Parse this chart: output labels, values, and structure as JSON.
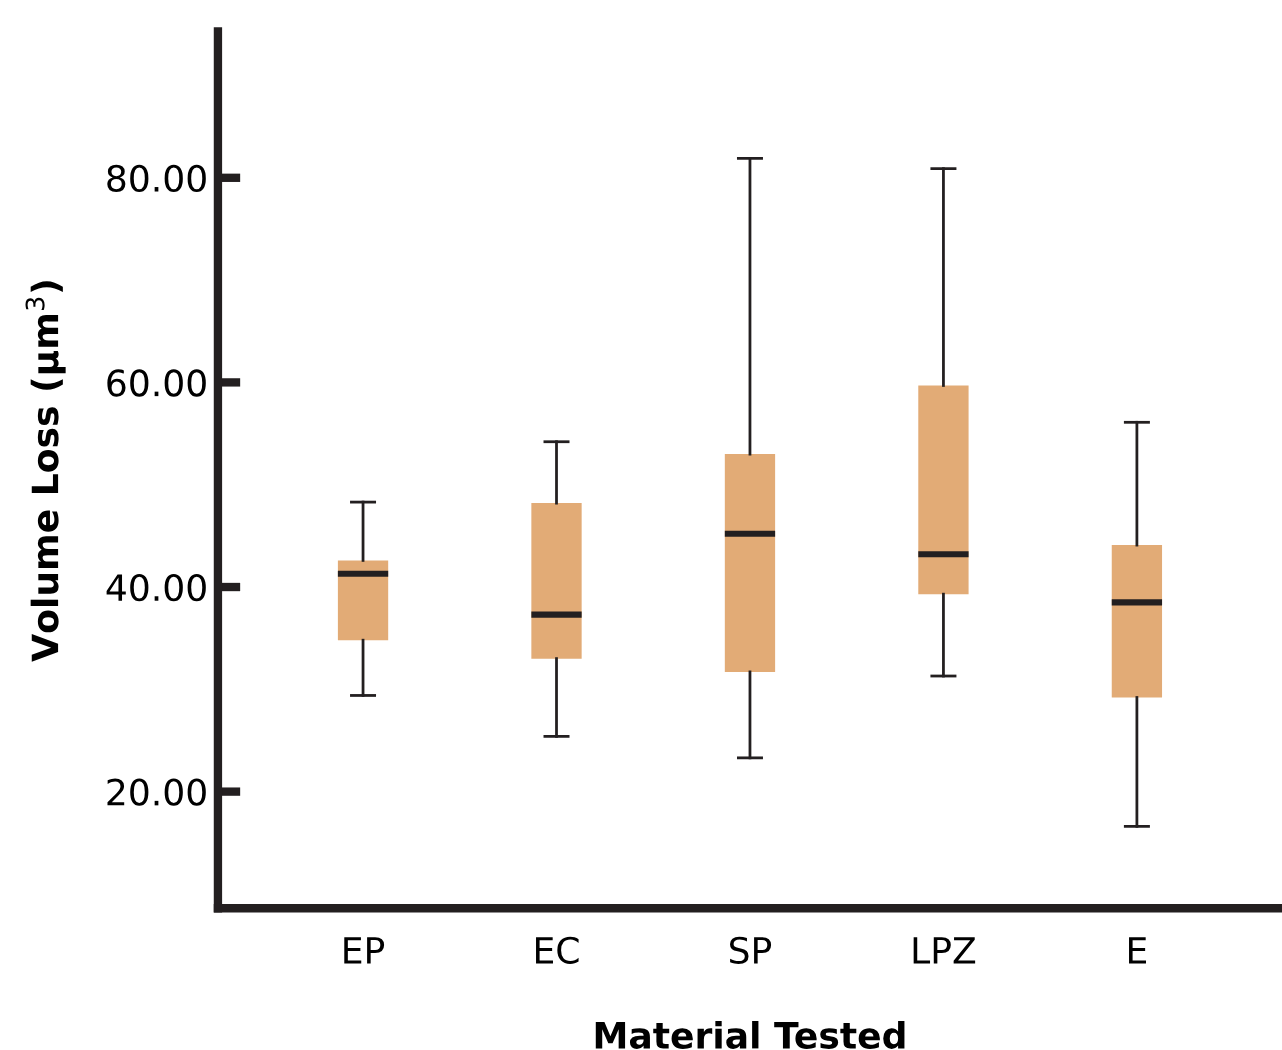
{
  "chart_data": {
    "type": "box",
    "xlabel": "Material Tested",
    "ylabel": "Volume Loss (µm$^{3}$)",
    "categories": [
      "EP",
      "EC",
      "SP",
      "LPZ",
      "E"
    ],
    "boxes": [
      {
        "low": 29.4,
        "q1": 34.8,
        "median": 41.3,
        "q3": 42.6,
        "high": 48.3
      },
      {
        "low": 25.4,
        "q1": 33.0,
        "median": 37.3,
        "q3": 48.2,
        "high": 54.2
      },
      {
        "low": 23.3,
        "q1": 31.7,
        "median": 45.2,
        "q3": 53.0,
        "high": 81.9
      },
      {
        "low": 31.3,
        "q1": 39.3,
        "median": 43.2,
        "q3": 59.7,
        "high": 80.9
      },
      {
        "low": 16.6,
        "q1": 29.2,
        "median": 38.5,
        "q3": 44.1,
        "high": 56.1
      }
    ],
    "color": "#e2ab76",
    "ylim": [
      8.6,
      94.3
    ],
    "yticks": [
      {
        "value": 20,
        "label": "20.00"
      },
      {
        "value": 40,
        "label": "40.00"
      },
      {
        "value": 60,
        "label": "60.00"
      },
      {
        "value": 80,
        "label": "80.00"
      }
    ],
    "grid": false,
    "legend": false
  }
}
